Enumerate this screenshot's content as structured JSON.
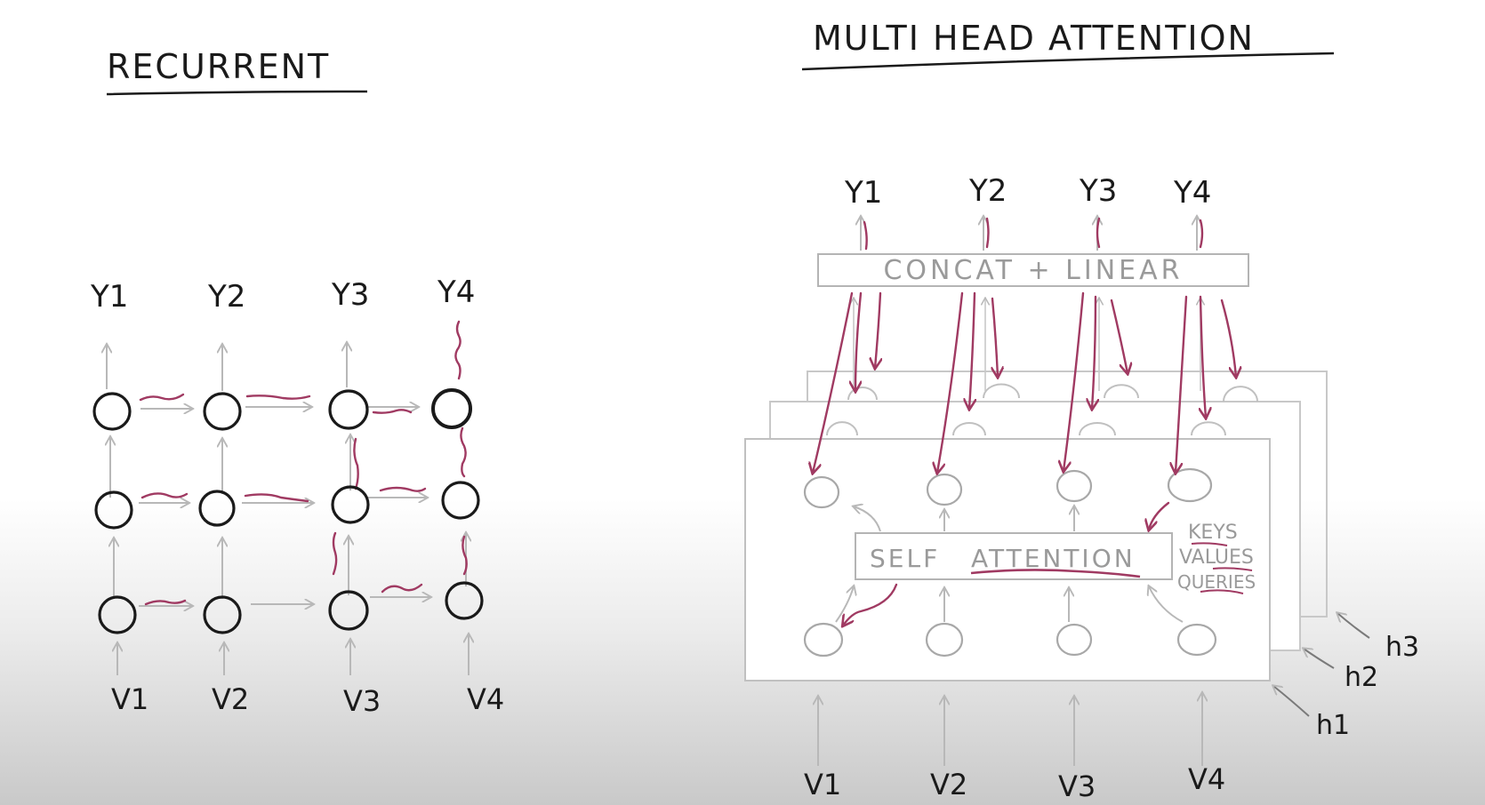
{
  "recurrent": {
    "title": "RECURRENT",
    "outputs": [
      "Y1",
      "Y2",
      "Y3",
      "Y4"
    ],
    "inputs": [
      "V1",
      "V2",
      "V3",
      "V4"
    ]
  },
  "multihead": {
    "title": "MULTI HEAD ATTENTION",
    "outputs": [
      "Y1",
      "Y2",
      "Y3",
      "Y4"
    ],
    "inputs": [
      "V1",
      "V2",
      "V3",
      "V4"
    ],
    "concat_label": "CONCAT + LINEAR",
    "self_attention_label_1": "SELF",
    "self_attention_label_2": "ATTENTION",
    "side_labels": [
      "KEYS",
      "VALUES",
      "QUERIES"
    ],
    "heads": [
      "h1",
      "h2",
      "h3"
    ]
  },
  "colors": {
    "ink": "#1a1a1a",
    "grey": "#b4b4b4",
    "accent": "#a03a62"
  }
}
